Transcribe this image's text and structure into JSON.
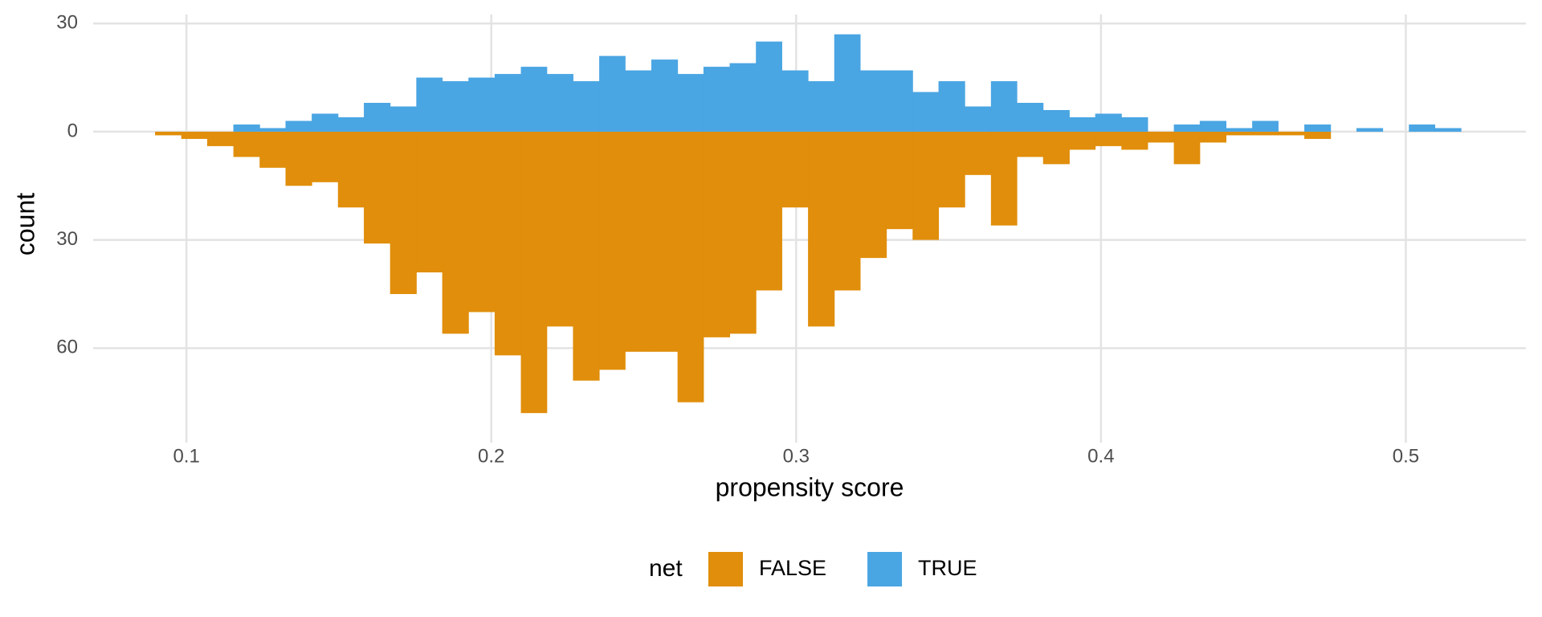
{
  "chart_data": {
    "type": "histogram",
    "x_label": "propensity score",
    "y_label": "count",
    "legend_title": "net",
    "bins": [
      0.0897,
      0.0983,
      0.1068,
      0.1154,
      0.124,
      0.1325,
      0.1411,
      0.1497,
      0.1582,
      0.1668,
      0.1754,
      0.1839,
      0.1925,
      0.2011,
      0.2097,
      0.2182,
      0.2268,
      0.2354,
      0.2439,
      0.2525,
      0.2611,
      0.2696,
      0.2782,
      0.2868,
      0.2953,
      0.3039,
      0.3125,
      0.321,
      0.3296,
      0.3382,
      0.3467,
      0.3553,
      0.3639,
      0.3724,
      0.381,
      0.3896,
      0.3981,
      0.4067,
      0.4153,
      0.4239,
      0.4324,
      0.441,
      0.4496,
      0.4581,
      0.4667,
      0.4753,
      0.4838,
      0.4924,
      0.501,
      0.5095,
      0.5181
    ],
    "series": [
      {
        "name": "FALSE",
        "color": "#e08e0b",
        "values": [
          -1,
          -2,
          -4,
          -7,
          -10,
          -15,
          -14,
          -21,
          -31,
          -45,
          -39,
          -56,
          -50,
          -62,
          -78,
          -54,
          -69,
          -66,
          -61,
          -61,
          -75,
          -57,
          -56,
          -44,
          -21,
          -54,
          -44,
          -35,
          -27,
          -30,
          -21,
          -12,
          -26,
          -7,
          -9,
          -5,
          -4,
          -5,
          -3,
          -9,
          -3,
          -1,
          -1,
          -1,
          -2,
          0,
          0,
          0,
          0,
          0
        ]
      },
      {
        "name": "TRUE",
        "color": "#4aa5e3",
        "values": [
          0,
          0,
          0,
          2,
          1,
          3,
          5,
          4,
          8,
          7,
          15,
          14,
          15,
          16,
          18,
          16,
          14,
          21,
          17,
          20,
          16,
          18,
          19,
          25,
          17,
          14,
          27,
          17,
          17,
          11,
          14,
          7,
          14,
          8,
          6,
          4,
          5,
          4,
          0,
          2,
          3,
          1,
          3,
          0,
          2,
          0,
          1,
          0,
          2,
          1
        ]
      }
    ],
    "xlim": [
      0.0694,
      0.5394
    ],
    "xticks": [
      0.1,
      0.2,
      0.3,
      0.4,
      0.5
    ],
    "ylim": [
      -86.2,
      32.5
    ],
    "yticks": [
      {
        "value": -60,
        "label": "60"
      },
      {
        "value": -30,
        "label": "30"
      },
      0,
      30
    ],
    "grid": true,
    "legend_position": "bottom"
  }
}
